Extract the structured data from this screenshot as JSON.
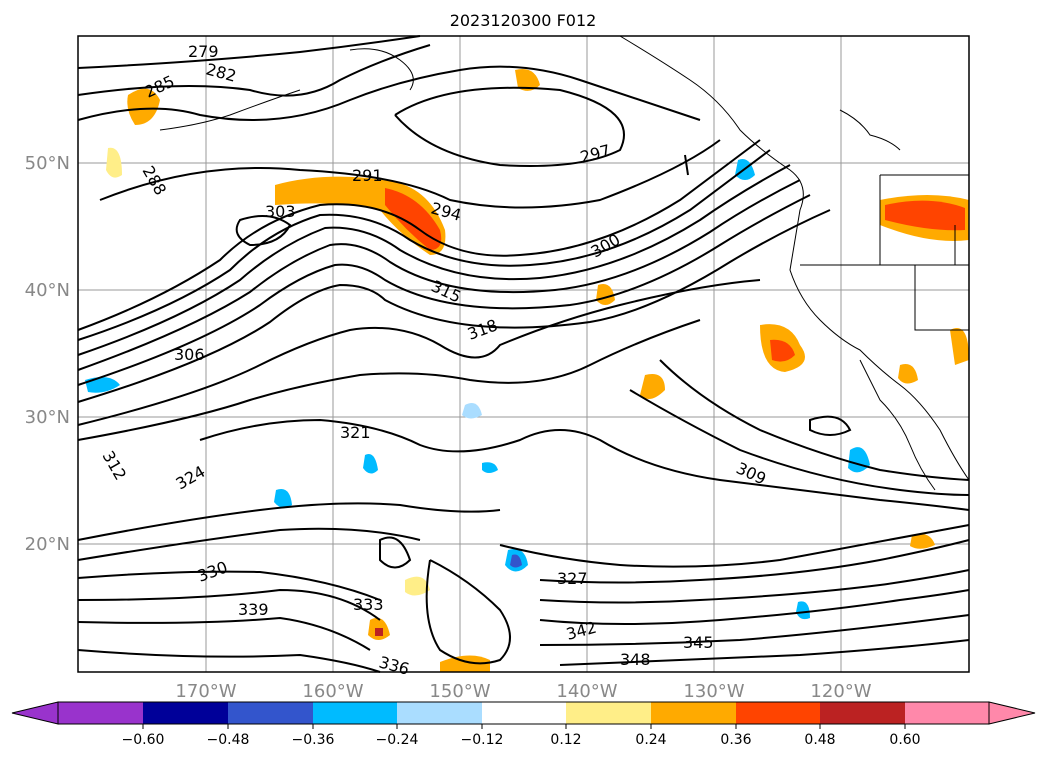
{
  "title": "2023120300 F012",
  "lat_labels": [
    "50°N",
    "40°N",
    "30°N",
    "20°N"
  ],
  "lon_labels": [
    "170°W",
    "160°W",
    "150°W",
    "140°W",
    "130°W",
    "120°W"
  ],
  "contour_labels": [
    "279",
    "282",
    "285",
    "288",
    "291",
    "294",
    "297",
    "300",
    "303",
    "306",
    "309",
    "312",
    "315",
    "318",
    "321",
    "324",
    "327",
    "330",
    "333",
    "336",
    "339",
    "342",
    "345",
    "348"
  ],
  "colorbar": {
    "ticks": [
      "−0.60",
      "−0.48",
      "−0.36",
      "−0.24",
      "−0.12",
      "0.12",
      "0.24",
      "0.36",
      "0.48",
      "0.60"
    ],
    "colors": [
      "#9933cc",
      "#000099",
      "#3355cc",
      "#00bbff",
      "#aaddff",
      "#ffffff",
      "#ffee88",
      "#ffaa00",
      "#ff4400",
      "#bb2222",
      "#ff88aa"
    ]
  }
}
